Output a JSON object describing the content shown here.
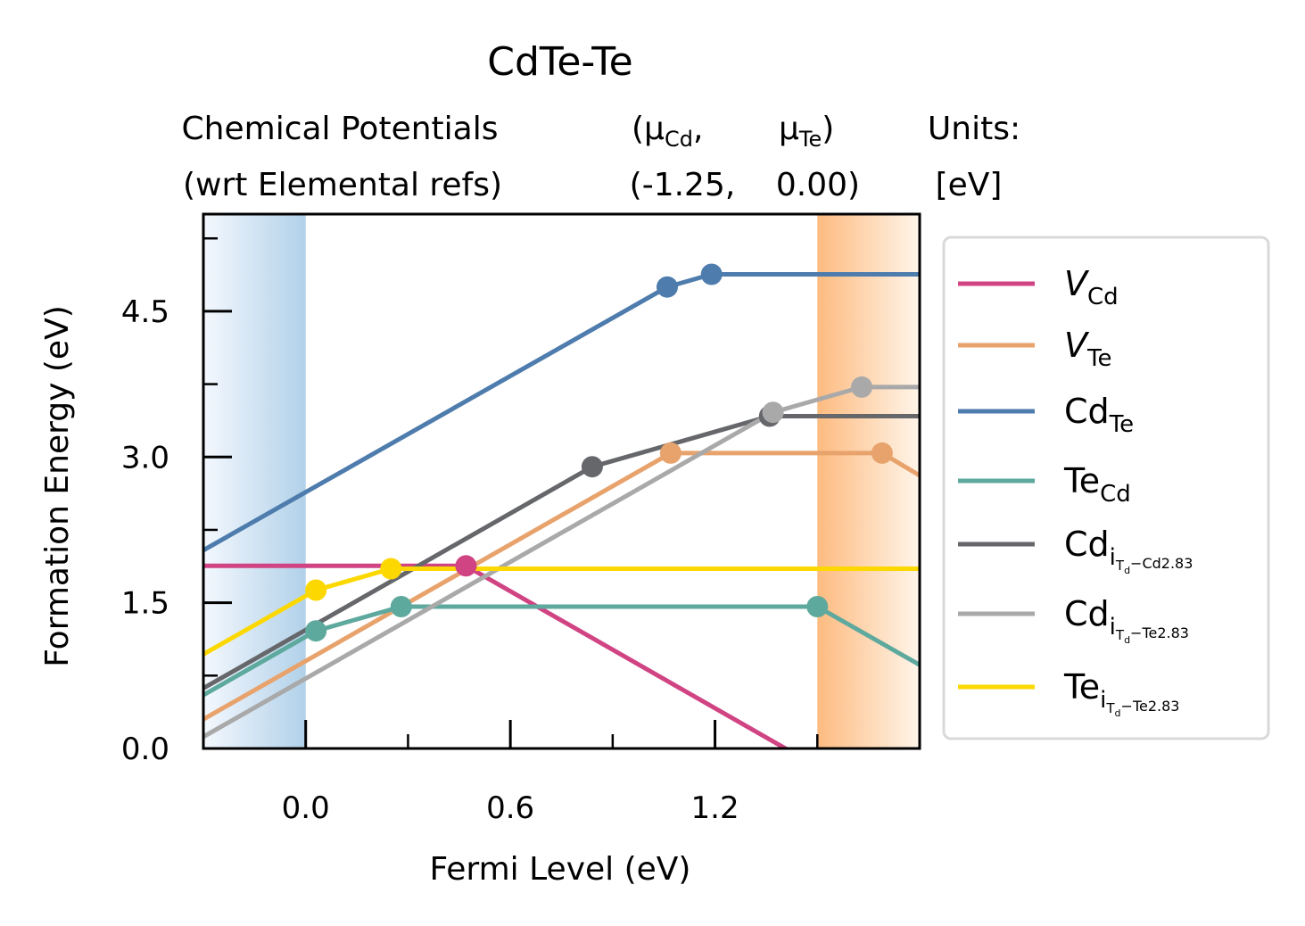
{
  "chart_data": {
    "type": "line",
    "title": "CdTe-Te",
    "subtitle": {
      "left_line1": "Chemical Potentials",
      "left_line2": "(wrt Elemental refs)",
      "mu_cd_label": "(μ",
      "mu_cd_sub": "Cd",
      "mu_cd_comma": ",",
      "mu_te_label": "μ",
      "mu_te_sub": "Te",
      "mu_te_close": ")",
      "values_cd": "(-1.25,",
      "values_te": "0.00)",
      "units_line1": "Units:",
      "units_line2": "[eV]"
    },
    "xlabel": "Fermi Level (eV)",
    "ylabel": "Formation Energy (eV)",
    "xlim": [
      -0.3,
      1.8
    ],
    "ylim": [
      0.0,
      5.5
    ],
    "xticks": [
      0.0,
      0.6,
      1.2
    ],
    "xtick_labels": [
      "0.0",
      "0.6",
      "1.2"
    ],
    "yticks": [
      0.0,
      1.5,
      3.0,
      4.5
    ],
    "ytick_labels": [
      "0.0",
      "1.5",
      "3.0",
      "4.5"
    ],
    "grid": false,
    "legend_position": "outside-right",
    "band_edges": {
      "vbm": 0.0,
      "cbm": 1.5
    },
    "series": [
      {
        "name": "V",
        "sub": "Cd",
        "italic": true,
        "color": "#d04483",
        "x": [
          -0.3,
          0.47,
          1.8
        ],
        "y": [
          1.88,
          1.88,
          -0.79
        ],
        "markers_x": [
          0.47
        ],
        "markers_y": [
          1.88
        ]
      },
      {
        "name": "V",
        "sub": "Te",
        "italic": true,
        "color": "#e8a36d",
        "x": [
          -0.3,
          1.07,
          1.69,
          1.8
        ],
        "y": [
          0.3,
          3.04,
          3.04,
          2.81
        ],
        "markers_x": [
          1.07,
          1.69
        ],
        "markers_y": [
          3.04,
          3.04
        ]
      },
      {
        "name": "Cd",
        "sub": "Te",
        "italic": false,
        "color": "#4e7cad",
        "x": [
          -0.3,
          1.06,
          1.19,
          1.8
        ],
        "y": [
          2.04,
          4.75,
          4.88,
          4.88
        ],
        "markers_x": [
          1.06,
          1.19
        ],
        "markers_y": [
          4.75,
          4.88
        ]
      },
      {
        "name": "Te",
        "sub": "Cd",
        "italic": false,
        "color": "#5ea99e",
        "x": [
          -0.3,
          0.03,
          0.28,
          1.5,
          1.8
        ],
        "y": [
          0.55,
          1.21,
          1.46,
          1.46,
          0.86
        ],
        "markers_x": [
          0.03,
          0.28,
          1.5
        ],
        "markers_y": [
          1.21,
          1.46,
          1.46
        ]
      },
      {
        "name": "Cd",
        "sub": "i",
        "subsub": "T",
        "subsubsub": "d",
        "subtail": "−Cd2.83",
        "italic": false,
        "color": "#66676b",
        "x": [
          -0.3,
          0.84,
          1.36,
          1.8
        ],
        "y": [
          0.62,
          2.9,
          3.42,
          3.42
        ],
        "markers_x": [
          0.84,
          1.36
        ],
        "markers_y": [
          2.9,
          3.42
        ]
      },
      {
        "name": "Cd",
        "sub": "i",
        "subsub": "T",
        "subsubsub": "d",
        "subtail": "−Te2.83",
        "italic": false,
        "color": "#a9a9a9",
        "x": [
          -0.3,
          1.37,
          1.63,
          1.8
        ],
        "y": [
          0.12,
          3.46,
          3.72,
          3.72
        ],
        "markers_x": [
          1.37,
          1.63
        ],
        "markers_y": [
          3.46,
          3.72
        ]
      },
      {
        "name": "Te",
        "sub": "i",
        "subsub": "T",
        "subsub_small": "d",
        "subtail": "−Te2.83",
        "italic": false,
        "color": "#fcd800",
        "x": [
          -0.3,
          0.03,
          0.25,
          1.8
        ],
        "y": [
          0.97,
          1.63,
          1.85,
          1.85
        ],
        "markers_x": [
          0.03,
          0.25
        ],
        "markers_y": [
          1.63,
          1.85
        ]
      }
    ]
  }
}
